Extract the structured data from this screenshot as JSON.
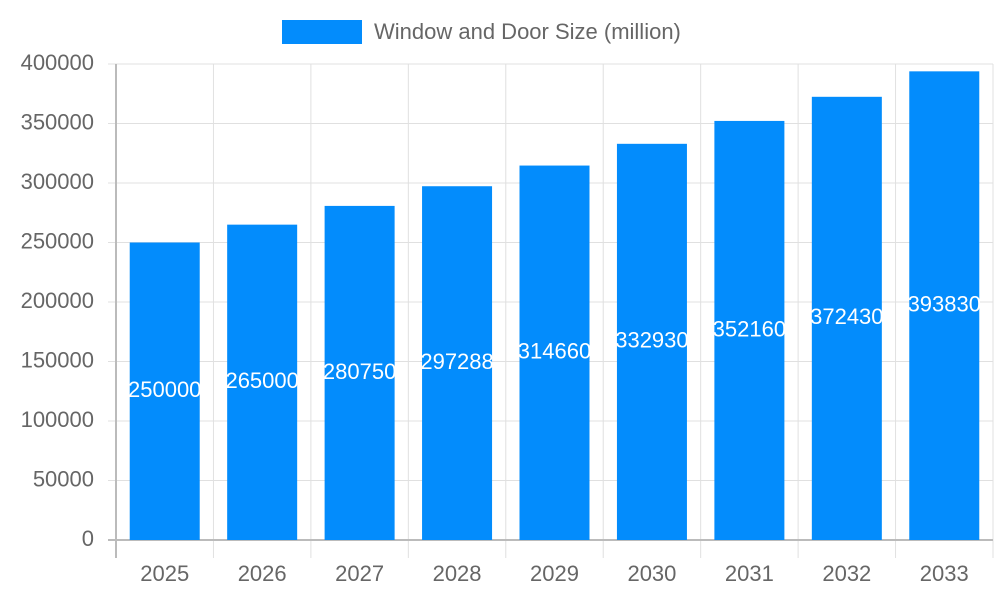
{
  "chart_data": {
    "type": "bar",
    "categories": [
      "2025",
      "2026",
      "2027",
      "2028",
      "2029",
      "2030",
      "2031",
      "2032",
      "2033"
    ],
    "series": [
      {
        "name": "Window and Door Size (million)",
        "color": "#038cfc",
        "values": [
          250000,
          265000,
          280750,
          297288,
          314660,
          332930,
          352160,
          372430,
          393830
        ]
      }
    ],
    "ylim": [
      0,
      400000
    ],
    "yticks": [
      0,
      50000,
      100000,
      150000,
      200000,
      250000,
      300000,
      350000,
      400000
    ],
    "grid": true,
    "legend": "top"
  }
}
